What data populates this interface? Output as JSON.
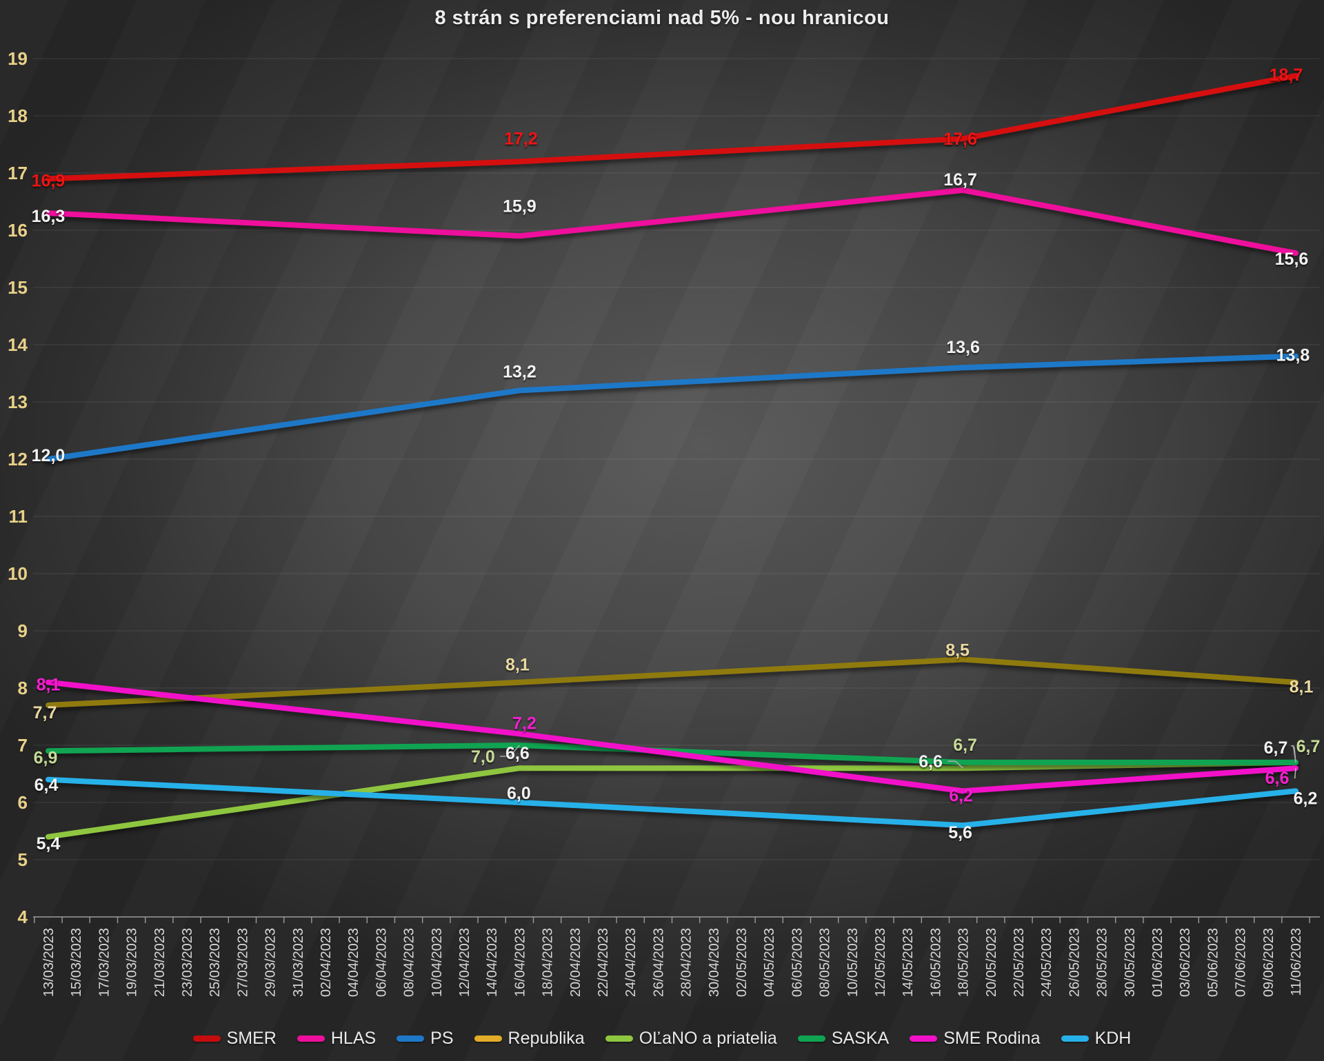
{
  "chart_data": {
    "type": "line",
    "title": "8 strán s preferenciami nad 5% - nou hranicou",
    "title_color": "#ececec",
    "grid": true,
    "legend_position": "bottom",
    "ylim": [
      4,
      19
    ],
    "y_ticks": [
      4,
      5,
      6,
      7,
      8,
      9,
      10,
      11,
      12,
      13,
      14,
      15,
      16,
      17,
      18,
      19
    ],
    "y_axis_color": "#e9d189",
    "x_axis_color": "#d6d6d6",
    "x_label_rotation": -90,
    "x_categories": [
      "13/03/2023",
      "15/03/2023",
      "17/03/2023",
      "19/03/2023",
      "21/03/2023",
      "23/03/2023",
      "25/03/2023",
      "27/03/2023",
      "29/03/2023",
      "31/03/2023",
      "02/04/2023",
      "04/04/2023",
      "06/04/2023",
      "08/04/2023",
      "10/04/2023",
      "12/04/2023",
      "14/04/2023",
      "16/04/2023",
      "18/04/2023",
      "20/04/2023",
      "22/04/2023",
      "24/04/2023",
      "26/04/2023",
      "28/04/2023",
      "30/04/2023",
      "02/05/2023",
      "04/05/2023",
      "06/05/2023",
      "08/05/2023",
      "10/05/2023",
      "12/05/2023",
      "14/05/2023",
      "16/05/2023",
      "18/05/2023",
      "20/05/2023",
      "22/05/2023",
      "24/05/2023",
      "26/05/2023",
      "28/05/2023",
      "30/05/2023",
      "01/06/2023",
      "03/06/2023",
      "05/06/2023",
      "07/06/2023",
      "09/06/2023",
      "11/06/2023"
    ],
    "survey_point_indices": [
      0,
      17,
      33,
      45
    ],
    "survey_dates": [
      "13/03/2023",
      "16/04/2023",
      "18/05/2023",
      "11/06/2023"
    ],
    "series": [
      {
        "name": "SMER",
        "color": "#d50f0f",
        "swatch_color": "#c50d0d",
        "label_color": "#ee1414",
        "values": [
          16.9,
          17.2,
          17.6,
          18.7
        ],
        "labels": [
          {
            "text": "16,9",
            "dx": 0,
            "dy": 2
          },
          {
            "text": "17,2",
            "dx": 2,
            "dy": -34
          },
          {
            "text": "17,6",
            "dx": -4,
            "dy": 0
          },
          {
            "text": "18,7",
            "dx": -14,
            "dy": -2
          }
        ]
      },
      {
        "name": "HLAS",
        "color": "#ee0f9c",
        "swatch_color": "#ee0f9c",
        "label_color": "#f2f2f2",
        "values": [
          16.3,
          15.9,
          16.7,
          15.6
        ],
        "labels": [
          {
            "text": "16,3",
            "dx": 0,
            "dy": 4
          },
          {
            "text": "15,9",
            "dx": 0,
            "dy": -44
          },
          {
            "text": "16,7",
            "dx": -4,
            "dy": -16
          },
          {
            "text": "15,6",
            "dx": -6,
            "dy": 8
          }
        ]
      },
      {
        "name": "PS",
        "color": "#1e78c8",
        "swatch_color": "#1e78c8",
        "label_color": "#f2f2f2",
        "values": [
          12.0,
          13.2,
          13.6,
          13.8
        ],
        "labels": [
          {
            "text": "12,0",
            "dx": 0,
            "dy": -6
          },
          {
            "text": "13,2",
            "dx": 0,
            "dy": -28
          },
          {
            "text": "13,6",
            "dx": 0,
            "dy": -30
          },
          {
            "text": "13,8",
            "dx": -4,
            "dy": -2
          }
        ]
      },
      {
        "name": "Republika",
        "color": "#8f7a0e",
        "swatch_color": "#e3ac28",
        "label_color": "#ead9a0",
        "values": [
          7.7,
          8.1,
          8.5,
          8.1
        ],
        "labels": [
          {
            "text": "7,7",
            "dx": -5,
            "dy": 10
          },
          {
            "text": "8,1",
            "dx": -3,
            "dy": -26
          },
          {
            "text": "8,5",
            "dx": -8,
            "dy": -14
          },
          {
            "text": "8,1",
            "dx": 8,
            "dy": 6
          }
        ]
      },
      {
        "name": "OĽaNO a priatelia",
        "color": "#8ec63f",
        "swatch_color": "#8ec63f",
        "label_color": "#f2f2f2",
        "values": [
          5.4,
          6.6,
          6.6,
          6.7
        ],
        "labels": [
          {
            "text": "5,4",
            "dx": 0,
            "dy": 9
          },
          {
            "text": "6,6",
            "dx": -3,
            "dy": -22
          },
          {
            "text": "6,6",
            "dx": -47,
            "dy": -10,
            "leader": true
          },
          {
            "text": "6,7",
            "dx": -29,
            "dy": -22,
            "leader": true
          }
        ]
      },
      {
        "name": "SASKA",
        "color": "#10a452",
        "swatch_color": "#10a452",
        "label_color": "#c7da96",
        "values": [
          6.9,
          7.0,
          6.7,
          6.7
        ],
        "labels": [
          {
            "text": "6,9",
            "dx": -4,
            "dy": 9
          },
          {
            "text": "7,0",
            "dx": -53,
            "dy": 16,
            "leader": true
          },
          {
            "text": "6,7",
            "dx": 3,
            "dy": -26
          },
          {
            "text": "6,7",
            "dx": 18,
            "dy": -24,
            "leader": true
          }
        ]
      },
      {
        "name": "SME Rodina",
        "color": "#f211c9",
        "swatch_color": "#f211c9",
        "label_color": "#f41fd0",
        "values": [
          8.1,
          7.2,
          6.2,
          6.6
        ],
        "labels": [
          {
            "text": "8,1",
            "dx": 0,
            "dy": 3
          },
          {
            "text": "7,2",
            "dx": 7,
            "dy": -16
          },
          {
            "text": "6,2",
            "dx": -3,
            "dy": 6
          },
          {
            "text": "6,6",
            "dx": -27,
            "dy": 14,
            "leader": true
          }
        ]
      },
      {
        "name": "KDH",
        "color": "#27b1e9",
        "swatch_color": "#27b1e9",
        "label_color": "#f2f2f2",
        "values": [
          6.4,
          6.0,
          5.6,
          6.2
        ],
        "labels": [
          {
            "text": "6,4",
            "dx": -3,
            "dy": 7
          },
          {
            "text": "6,0",
            "dx": -1,
            "dy": -14
          },
          {
            "text": "5,6",
            "dx": -4,
            "dy": 10
          },
          {
            "text": "6,2",
            "dx": 14,
            "dy": 10
          }
        ]
      }
    ]
  }
}
